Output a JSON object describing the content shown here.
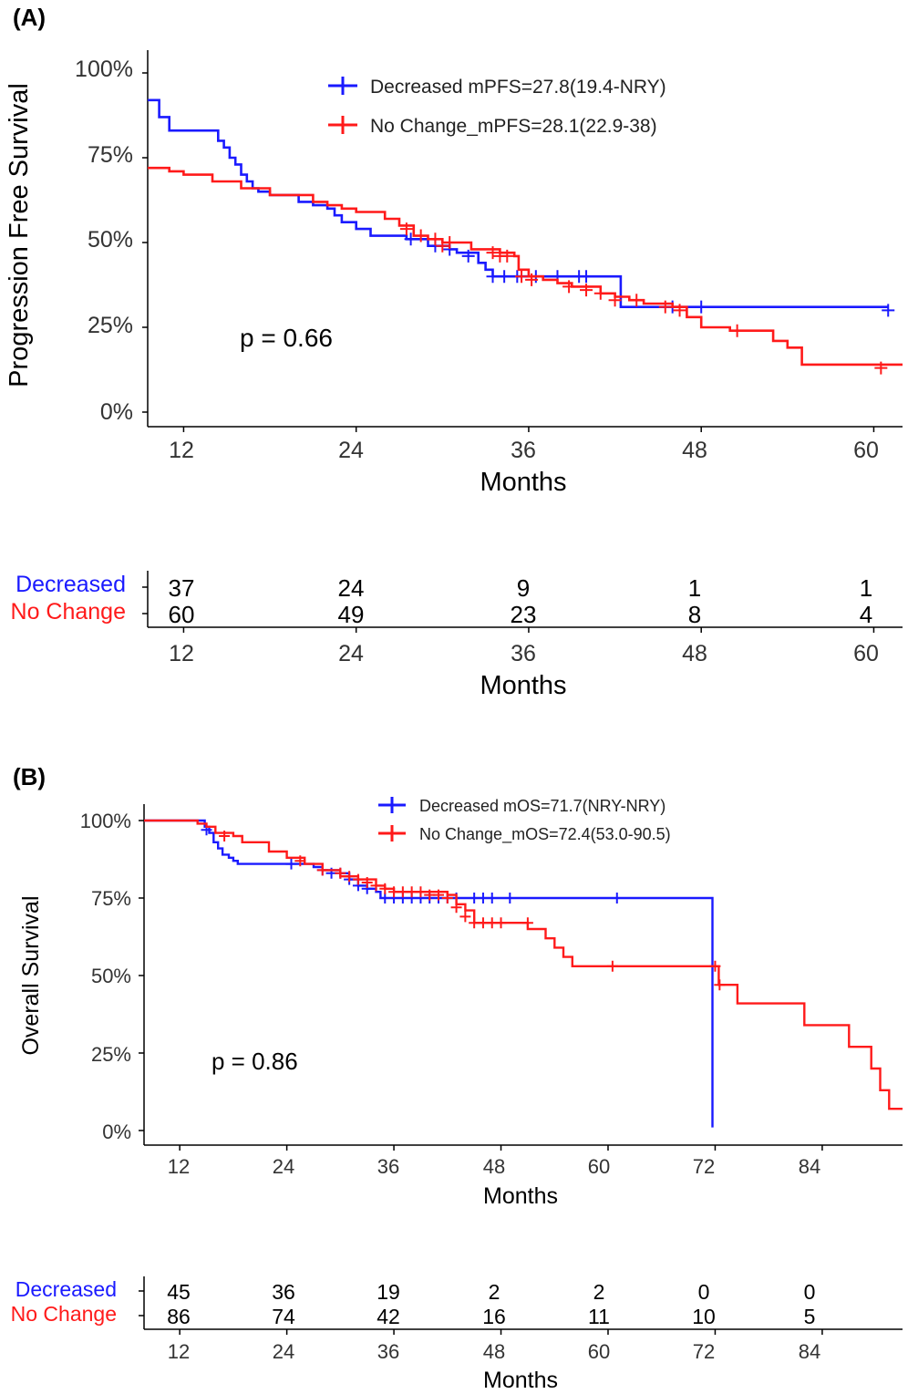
{
  "colors": {
    "decreased": "#1a1aff",
    "no_change": "#ff1a1a",
    "axis": "#000000"
  },
  "chart_data": [
    {
      "type": "line",
      "panel_label": "(A)",
      "ylabel": "Progression Free Survival",
      "xlabel": "Months",
      "y_tick_labels": [
        "0%",
        "25%",
        "50%",
        "75%",
        "100%"
      ],
      "x_ticks": [
        12,
        24,
        36,
        48,
        60
      ],
      "xlim": [
        9.5,
        62
      ],
      "ylim": [
        0,
        100
      ],
      "p_value": "p = 0.66",
      "legend": [
        "Decreased  mPFS=27.8(19.4-NRY)",
        "No Change_mPFS=28.1(22.9-38)"
      ],
      "legend_position": "top-center",
      "series": [
        {
          "name": "Decreased",
          "color": "#1a1aff",
          "steps": [
            [
              9.5,
              92
            ],
            [
              10,
              92
            ],
            [
              10.3,
              87
            ],
            [
              11,
              83
            ],
            [
              12,
              83
            ],
            [
              14,
              83
            ],
            [
              14.4,
              80
            ],
            [
              14.8,
              78
            ],
            [
              15.2,
              75
            ],
            [
              15.6,
              73
            ],
            [
              16,
              70
            ],
            [
              16.4,
              68
            ],
            [
              16.8,
              66
            ],
            [
              17.2,
              65
            ],
            [
              18,
              64
            ],
            [
              20,
              62
            ],
            [
              21,
              61
            ],
            [
              22,
              60
            ],
            [
              22.5,
              58
            ],
            [
              23,
              56
            ],
            [
              24,
              54
            ],
            [
              25,
              52
            ],
            [
              27,
              52
            ],
            [
              27.5,
              51
            ],
            [
              29,
              49
            ],
            [
              30.5,
              48
            ],
            [
              31,
              47
            ],
            [
              32.5,
              44
            ],
            [
              33,
              42
            ],
            [
              33.5,
              40
            ],
            [
              36,
              40
            ],
            [
              42.3,
              40
            ],
            [
              42.4,
              31
            ],
            [
              48,
              31
            ],
            [
              61,
              31
            ]
          ],
          "censor": [
            [
              27.8,
              51
            ],
            [
              29.5,
              49
            ],
            [
              30.5,
              48
            ],
            [
              31.8,
              46
            ],
            [
              33.5,
              40
            ],
            [
              34.3,
              40
            ],
            [
              35.2,
              40
            ],
            [
              36.5,
              40
            ],
            [
              38,
              40
            ],
            [
              39.5,
              40
            ],
            [
              40,
              40
            ],
            [
              46,
              31
            ],
            [
              48,
              31
            ],
            [
              61,
              30
            ]
          ]
        },
        {
          "name": "No Change",
          "color": "#ff1a1a",
          "steps": [
            [
              9.5,
              72
            ],
            [
              10,
              72
            ],
            [
              11,
              71
            ],
            [
              12,
              70
            ],
            [
              14,
              68
            ],
            [
              16,
              66
            ],
            [
              18,
              64
            ],
            [
              21,
              62
            ],
            [
              22,
              61
            ],
            [
              23,
              60
            ],
            [
              24,
              59
            ],
            [
              26,
              57
            ],
            [
              27,
              55
            ],
            [
              28,
              52
            ],
            [
              29,
              51
            ],
            [
              30,
              50
            ],
            [
              31,
              50
            ],
            [
              32,
              48
            ],
            [
              33,
              48
            ],
            [
              34,
              47
            ],
            [
              35,
              46
            ],
            [
              35.3,
              42
            ],
            [
              36,
              40
            ],
            [
              37,
              39
            ],
            [
              38,
              38
            ],
            [
              39,
              37
            ],
            [
              40,
              37
            ],
            [
              41,
              35
            ],
            [
              42,
              34
            ],
            [
              43,
              33
            ],
            [
              44,
              32
            ],
            [
              46,
              31
            ],
            [
              47,
              28
            ],
            [
              48,
              25
            ],
            [
              50,
              24
            ],
            [
              52,
              24
            ],
            [
              53,
              21
            ],
            [
              54,
              19
            ],
            [
              55,
              14
            ],
            [
              58,
              14
            ],
            [
              62,
              14
            ]
          ],
          "censor": [
            [
              27.5,
              54
            ],
            [
              28.5,
              52
            ],
            [
              29.5,
              51
            ],
            [
              30,
              49
            ],
            [
              30.5,
              50
            ],
            [
              33.5,
              47
            ],
            [
              34,
              46
            ],
            [
              34.5,
              46
            ],
            [
              35.5,
              40
            ],
            [
              36.2,
              39
            ],
            [
              38.8,
              37
            ],
            [
              40,
              36
            ],
            [
              41,
              35
            ],
            [
              42,
              33
            ],
            [
              43.5,
              33
            ],
            [
              45.5,
              31
            ],
            [
              46.5,
              30
            ],
            [
              50.5,
              24
            ],
            [
              60.5,
              13
            ]
          ]
        }
      ],
      "risk_table": {
        "xlabel": "Months",
        "groups": [
          {
            "label": "Decreased",
            "values": [
              "37",
              "24",
              "9",
              "1",
              "1"
            ]
          },
          {
            "label": "No Change",
            "values": [
              "60",
              "49",
              "23",
              "8",
              "4"
            ]
          }
        ]
      }
    },
    {
      "type": "line",
      "panel_label": "(B)",
      "ylabel": "Overall Survival",
      "xlabel": "Months",
      "y_tick_labels": [
        "0%",
        "25%",
        "50%",
        "75%",
        "100%"
      ],
      "x_ticks": [
        12,
        24,
        36,
        48,
        60,
        72,
        84
      ],
      "xlim": [
        8,
        93
      ],
      "ylim": [
        0,
        100
      ],
      "p_value": "p = 0.86",
      "legend": [
        "Decreased  mOS=71.7(NRY-NRY)",
        "No Change_mOS=72.4(53.0-90.5)"
      ],
      "legend_position": "top-center",
      "series": [
        {
          "name": "Decreased",
          "color": "#1a1aff",
          "steps": [
            [
              8,
              100
            ],
            [
              14.5,
              100
            ],
            [
              14.8,
              98
            ],
            [
              15.3,
              96
            ],
            [
              15.8,
              93
            ],
            [
              16.3,
              91
            ],
            [
              16.8,
              89
            ],
            [
              17.5,
              88
            ],
            [
              18,
              87
            ],
            [
              18.5,
              86
            ],
            [
              24,
              86
            ],
            [
              26,
              86
            ],
            [
              27,
              85
            ],
            [
              28,
              84
            ],
            [
              30,
              83
            ],
            [
              31,
              81
            ],
            [
              32,
              79
            ],
            [
              33,
              78
            ],
            [
              34,
              77
            ],
            [
              34.5,
              75
            ],
            [
              60,
              75
            ],
            [
              71.7,
              75
            ],
            [
              71.7,
              1
            ]
          ],
          "censor": [
            [
              15,
              97
            ],
            [
              24.5,
              86
            ],
            [
              28,
              84
            ],
            [
              29,
              83
            ],
            [
              30,
              83
            ],
            [
              31,
              81
            ],
            [
              32,
              79
            ],
            [
              33,
              78
            ],
            [
              35,
              75
            ],
            [
              36,
              75
            ],
            [
              37,
              75
            ],
            [
              38,
              75
            ],
            [
              39,
              75
            ],
            [
              40,
              75
            ],
            [
              41,
              75
            ],
            [
              42,
              75
            ],
            [
              43,
              75
            ],
            [
              45,
              75
            ],
            [
              46,
              75
            ],
            [
              47,
              75
            ],
            [
              49,
              75
            ],
            [
              61,
              75
            ]
          ]
        },
        {
          "name": "No Change",
          "color": "#ff1a1a",
          "steps": [
            [
              8,
              100
            ],
            [
              12,
              100
            ],
            [
              14,
              99
            ],
            [
              15,
              98
            ],
            [
              16,
              96
            ],
            [
              18,
              95
            ],
            [
              19,
              93
            ],
            [
              21,
              93
            ],
            [
              22,
              90
            ],
            [
              24,
              88
            ],
            [
              26,
              86
            ],
            [
              28,
              84
            ],
            [
              30,
              82
            ],
            [
              32,
              81
            ],
            [
              34,
              79
            ],
            [
              35,
              78
            ],
            [
              36,
              77
            ],
            [
              42,
              76
            ],
            [
              43,
              73
            ],
            [
              44,
              71
            ],
            [
              45,
              67
            ],
            [
              50,
              67
            ],
            [
              51,
              65
            ],
            [
              53,
              62
            ],
            [
              54,
              59
            ],
            [
              55,
              56
            ],
            [
              56,
              53
            ],
            [
              60,
              53
            ],
            [
              72,
              53
            ],
            [
              72.4,
              47
            ],
            [
              74.5,
              41
            ],
            [
              80,
              41
            ],
            [
              82,
              34
            ],
            [
              86,
              34
            ],
            [
              87,
              27
            ],
            [
              89,
              27
            ],
            [
              89.5,
              20
            ],
            [
              90.5,
              13
            ],
            [
              91.5,
              7
            ],
            [
              93,
              7
            ]
          ],
          "censor": [
            [
              17,
              95
            ],
            [
              25.5,
              87
            ],
            [
              28,
              84
            ],
            [
              30,
              83
            ],
            [
              31,
              82
            ],
            [
              32,
              81
            ],
            [
              33,
              80
            ],
            [
              34,
              79
            ],
            [
              35,
              78
            ],
            [
              36,
              77
            ],
            [
              37,
              77
            ],
            [
              38,
              77
            ],
            [
              39,
              77
            ],
            [
              40,
              76
            ],
            [
              41,
              76
            ],
            [
              42,
              75
            ],
            [
              43,
              72
            ],
            [
              44,
              69
            ],
            [
              45,
              67
            ],
            [
              46,
              67
            ],
            [
              47,
              67
            ],
            [
              48,
              67
            ],
            [
              51,
              67
            ],
            [
              60.5,
              53
            ],
            [
              72,
              53
            ],
            [
              72.5,
              47
            ]
          ]
        }
      ],
      "risk_table": {
        "xlabel": "Months",
        "groups": [
          {
            "label": "Decreased",
            "values": [
              "45",
              "36",
              "19",
              "2",
              "2",
              "0",
              "0"
            ]
          },
          {
            "label": "No Change",
            "values": [
              "86",
              "74",
              "42",
              "16",
              "11",
              "10",
              "5"
            ]
          }
        ]
      }
    }
  ]
}
